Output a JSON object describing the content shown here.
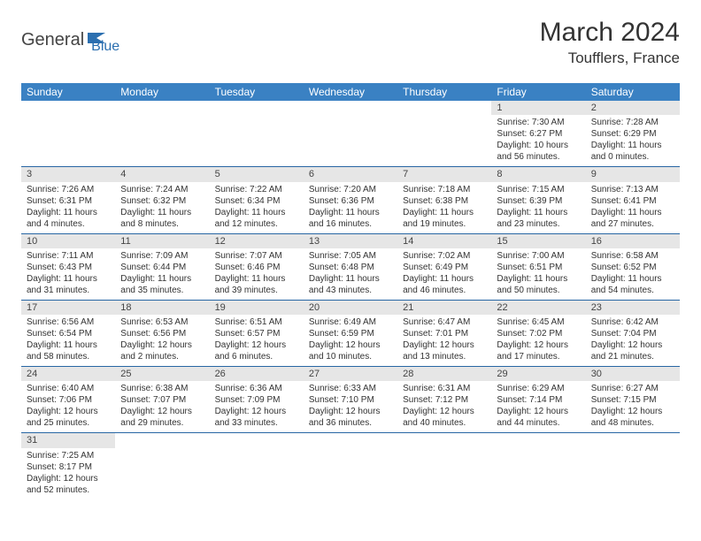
{
  "logo": {
    "word1": "General",
    "word2": "Blue",
    "color1": "#444444",
    "color2": "#2b6fb0"
  },
  "title": "March 2024",
  "location": "Toufflers, France",
  "style": {
    "header_bg": "#3a81c3",
    "header_fg": "#ffffff",
    "daynum_bg": "#e6e6e6",
    "cell_border": "#2866a4",
    "title_fontsize": 30,
    "location_fontsize": 17,
    "th_fontsize": 12,
    "cell_fontsize": 10
  },
  "days_of_week": [
    "Sunday",
    "Monday",
    "Tuesday",
    "Wednesday",
    "Thursday",
    "Friday",
    "Saturday"
  ],
  "weeks": [
    [
      null,
      null,
      null,
      null,
      null,
      {
        "n": "1",
        "sunrise": "Sunrise: 7:30 AM",
        "sunset": "Sunset: 6:27 PM",
        "daylight": "Daylight: 10 hours and 56 minutes."
      },
      {
        "n": "2",
        "sunrise": "Sunrise: 7:28 AM",
        "sunset": "Sunset: 6:29 PM",
        "daylight": "Daylight: 11 hours and 0 minutes."
      }
    ],
    [
      {
        "n": "3",
        "sunrise": "Sunrise: 7:26 AM",
        "sunset": "Sunset: 6:31 PM",
        "daylight": "Daylight: 11 hours and 4 minutes."
      },
      {
        "n": "4",
        "sunrise": "Sunrise: 7:24 AM",
        "sunset": "Sunset: 6:32 PM",
        "daylight": "Daylight: 11 hours and 8 minutes."
      },
      {
        "n": "5",
        "sunrise": "Sunrise: 7:22 AM",
        "sunset": "Sunset: 6:34 PM",
        "daylight": "Daylight: 11 hours and 12 minutes."
      },
      {
        "n": "6",
        "sunrise": "Sunrise: 7:20 AM",
        "sunset": "Sunset: 6:36 PM",
        "daylight": "Daylight: 11 hours and 16 minutes."
      },
      {
        "n": "7",
        "sunrise": "Sunrise: 7:18 AM",
        "sunset": "Sunset: 6:38 PM",
        "daylight": "Daylight: 11 hours and 19 minutes."
      },
      {
        "n": "8",
        "sunrise": "Sunrise: 7:15 AM",
        "sunset": "Sunset: 6:39 PM",
        "daylight": "Daylight: 11 hours and 23 minutes."
      },
      {
        "n": "9",
        "sunrise": "Sunrise: 7:13 AM",
        "sunset": "Sunset: 6:41 PM",
        "daylight": "Daylight: 11 hours and 27 minutes."
      }
    ],
    [
      {
        "n": "10",
        "sunrise": "Sunrise: 7:11 AM",
        "sunset": "Sunset: 6:43 PM",
        "daylight": "Daylight: 11 hours and 31 minutes."
      },
      {
        "n": "11",
        "sunrise": "Sunrise: 7:09 AM",
        "sunset": "Sunset: 6:44 PM",
        "daylight": "Daylight: 11 hours and 35 minutes."
      },
      {
        "n": "12",
        "sunrise": "Sunrise: 7:07 AM",
        "sunset": "Sunset: 6:46 PM",
        "daylight": "Daylight: 11 hours and 39 minutes."
      },
      {
        "n": "13",
        "sunrise": "Sunrise: 7:05 AM",
        "sunset": "Sunset: 6:48 PM",
        "daylight": "Daylight: 11 hours and 43 minutes."
      },
      {
        "n": "14",
        "sunrise": "Sunrise: 7:02 AM",
        "sunset": "Sunset: 6:49 PM",
        "daylight": "Daylight: 11 hours and 46 minutes."
      },
      {
        "n": "15",
        "sunrise": "Sunrise: 7:00 AM",
        "sunset": "Sunset: 6:51 PM",
        "daylight": "Daylight: 11 hours and 50 minutes."
      },
      {
        "n": "16",
        "sunrise": "Sunrise: 6:58 AM",
        "sunset": "Sunset: 6:52 PM",
        "daylight": "Daylight: 11 hours and 54 minutes."
      }
    ],
    [
      {
        "n": "17",
        "sunrise": "Sunrise: 6:56 AM",
        "sunset": "Sunset: 6:54 PM",
        "daylight": "Daylight: 11 hours and 58 minutes."
      },
      {
        "n": "18",
        "sunrise": "Sunrise: 6:53 AM",
        "sunset": "Sunset: 6:56 PM",
        "daylight": "Daylight: 12 hours and 2 minutes."
      },
      {
        "n": "19",
        "sunrise": "Sunrise: 6:51 AM",
        "sunset": "Sunset: 6:57 PM",
        "daylight": "Daylight: 12 hours and 6 minutes."
      },
      {
        "n": "20",
        "sunrise": "Sunrise: 6:49 AM",
        "sunset": "Sunset: 6:59 PM",
        "daylight": "Daylight: 12 hours and 10 minutes."
      },
      {
        "n": "21",
        "sunrise": "Sunrise: 6:47 AM",
        "sunset": "Sunset: 7:01 PM",
        "daylight": "Daylight: 12 hours and 13 minutes."
      },
      {
        "n": "22",
        "sunrise": "Sunrise: 6:45 AM",
        "sunset": "Sunset: 7:02 PM",
        "daylight": "Daylight: 12 hours and 17 minutes."
      },
      {
        "n": "23",
        "sunrise": "Sunrise: 6:42 AM",
        "sunset": "Sunset: 7:04 PM",
        "daylight": "Daylight: 12 hours and 21 minutes."
      }
    ],
    [
      {
        "n": "24",
        "sunrise": "Sunrise: 6:40 AM",
        "sunset": "Sunset: 7:06 PM",
        "daylight": "Daylight: 12 hours and 25 minutes."
      },
      {
        "n": "25",
        "sunrise": "Sunrise: 6:38 AM",
        "sunset": "Sunset: 7:07 PM",
        "daylight": "Daylight: 12 hours and 29 minutes."
      },
      {
        "n": "26",
        "sunrise": "Sunrise: 6:36 AM",
        "sunset": "Sunset: 7:09 PM",
        "daylight": "Daylight: 12 hours and 33 minutes."
      },
      {
        "n": "27",
        "sunrise": "Sunrise: 6:33 AM",
        "sunset": "Sunset: 7:10 PM",
        "daylight": "Daylight: 12 hours and 36 minutes."
      },
      {
        "n": "28",
        "sunrise": "Sunrise: 6:31 AM",
        "sunset": "Sunset: 7:12 PM",
        "daylight": "Daylight: 12 hours and 40 minutes."
      },
      {
        "n": "29",
        "sunrise": "Sunrise: 6:29 AM",
        "sunset": "Sunset: 7:14 PM",
        "daylight": "Daylight: 12 hours and 44 minutes."
      },
      {
        "n": "30",
        "sunrise": "Sunrise: 6:27 AM",
        "sunset": "Sunset: 7:15 PM",
        "daylight": "Daylight: 12 hours and 48 minutes."
      }
    ],
    [
      {
        "n": "31",
        "sunrise": "Sunrise: 7:25 AM",
        "sunset": "Sunset: 8:17 PM",
        "daylight": "Daylight: 12 hours and 52 minutes."
      },
      null,
      null,
      null,
      null,
      null,
      null
    ]
  ]
}
